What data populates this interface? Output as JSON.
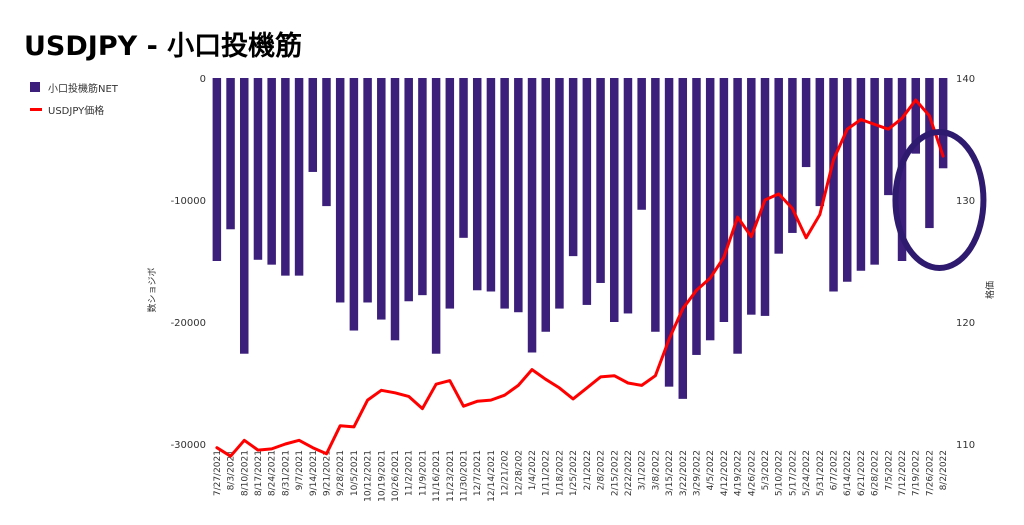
{
  "title": "USDJPY - 小口投機筋",
  "colors": {
    "bars": "#3b1f7a",
    "line": "#ff0000",
    "circle": "#2e1a6e"
  },
  "chart_data": {
    "type": "bar+line",
    "title": "USDJPY - 小口投機筋",
    "ylabel_left": "数ショジボ",
    "ylabel_right": "格価",
    "ylim_left": [
      -30000,
      0
    ],
    "ylim_right": [
      110,
      140
    ],
    "yticks_left": [
      "0",
      "-10000",
      "-20000",
      "-30000"
    ],
    "yticks_right": [
      "140",
      "130",
      "120",
      "110"
    ],
    "legend": [
      {
        "name": "小口投機筋NET",
        "kind": "bar"
      },
      {
        "name": "USDJPY価格",
        "kind": "line"
      }
    ],
    "legend_position": "left",
    "categories": [
      "7/27/2021",
      "8/3/2021",
      "8/10/2021",
      "8/17/2021",
      "8/24/2021",
      "8/31/2021",
      "9/7/2021",
      "9/14/2021",
      "9/21/2021",
      "9/28/2021",
      "10/5/2021",
      "10/12/2021",
      "10/19/2021",
      "10/26/2021",
      "11/2/2021",
      "11/9/2021",
      "11/16/2021",
      "11/23/2021",
      "11/30/2021",
      "12/7/2021",
      "12/14/2021",
      "12/21/2021",
      "12/28/2021",
      "1/4/2022",
      "1/11/2022",
      "1/18/2022",
      "1/25/2022",
      "2/1/2022",
      "2/8/2022",
      "2/15/2022",
      "2/22/2022",
      "3/1/2022",
      "3/8/2022",
      "3/15/2022",
      "3/22/2022",
      "3/29/2022",
      "4/5/2022",
      "4/12/2022",
      "4/19/2022",
      "4/26/2022",
      "5/3/2022",
      "5/10/2022",
      "5/17/2022",
      "5/24/2022",
      "5/31/2022",
      "6/7/2022",
      "6/14/2022",
      "6/21/2022",
      "6/28/2022",
      "7/5/2022",
      "7/12/2022",
      "7/19/2022",
      "7/26/2022",
      "8/2/2022"
    ],
    "xtick_labels": [
      "7/27/2021",
      "8/3/2021",
      "8/10/2021",
      "8/17/2021",
      "8/24/2021",
      "8/31/2021",
      "9/7/2021",
      "9/14/2021",
      "9/21/2021",
      "9/28/2021",
      "10/5/2021",
      "10/12/2021",
      "10/19/2021",
      "10/26/2021",
      "11/2/2021",
      "11/9/2021",
      "11/16/2021",
      "11/23/2021",
      "11/30/2021",
      "12/7/2021",
      "12/14/2021",
      "12/21/202",
      "12/28/202",
      "1/4/2022",
      "1/11/2022",
      "1/18/2022",
      "1/25/2022",
      "2/1/2022",
      "2/8/2022",
      "2/15/2022",
      "2/22/2022",
      "3/1/2022",
      "3/8/2022",
      "3/15/2022",
      "3/22/2022",
      "3/29/2022",
      "4/5/2022",
      "4/12/2022",
      "4/19/2022",
      "4/26/2022",
      "5/3/2022",
      "5/10/2022",
      "5/17/2022",
      "5/24/2022",
      "5/31/2022",
      "6/7/2022",
      "6/14/2022",
      "6/21/2022",
      "6/28/2022",
      "7/5/2022",
      "7/12/2022",
      "7/19/2022",
      "7/26/2022",
      "8/2/2022"
    ],
    "series": [
      {
        "name": "小口投機筋NET",
        "type": "bar",
        "values": [
          -15000,
          -12400,
          -22600,
          -14900,
          -15300,
          -16200,
          -16200,
          -7700,
          -10500,
          -18400,
          -20700,
          -18400,
          -19800,
          -21500,
          -18300,
          -17800,
          -22600,
          -18900,
          -13100,
          -17400,
          -17500,
          -18900,
          -19200,
          -22500,
          -20800,
          -18900,
          -14600,
          -18600,
          -16800,
          -20000,
          -19300,
          -10800,
          -20800,
          -25300,
          -26300,
          -22700,
          -21500,
          -20000,
          -22600,
          -19400,
          -19500,
          -14400,
          -12700,
          -7300,
          -10500,
          -17500,
          -16700,
          -15800,
          -15300,
          -9600,
          -15000,
          -6200,
          -12300,
          -7400
        ]
      },
      {
        "name": "USDJPY価格",
        "type": "line",
        "axis": "right",
        "values": [
          109.7,
          109.0,
          110.3,
          109.5,
          109.6,
          110.0,
          110.3,
          109.7,
          109.2,
          111.5,
          111.4,
          113.6,
          114.4,
          114.2,
          113.9,
          112.9,
          114.9,
          115.2,
          113.1,
          113.5,
          113.6,
          114.0,
          114.8,
          116.1,
          115.3,
          114.6,
          113.7,
          114.6,
          115.5,
          115.6,
          115.0,
          114.8,
          115.6,
          118.6,
          121.1,
          122.6,
          123.6,
          125.3,
          128.6,
          127.0,
          130.0,
          130.5,
          129.3,
          126.9,
          128.8,
          133.3,
          135.8,
          136.6,
          136.2,
          135.8,
          136.7,
          138.2,
          136.9,
          133.6
        ]
      }
    ],
    "annotations": [
      {
        "kind": "ellipse",
        "around_categories": [
          "7/19/2022",
          "8/2/2022"
        ]
      }
    ]
  }
}
